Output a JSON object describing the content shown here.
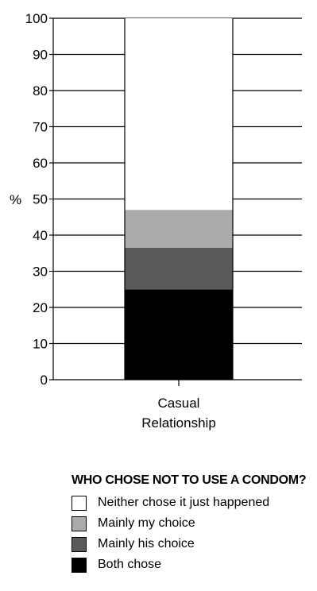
{
  "chart_data": {
    "type": "bar",
    "stacked": true,
    "categories": [
      "Casual\nRelationship"
    ],
    "ylabel": "%",
    "ylim": [
      0,
      100
    ],
    "yticks": [
      0,
      10,
      20,
      30,
      40,
      50,
      60,
      70,
      80,
      90,
      100
    ],
    "grid": true,
    "series": [
      {
        "name": "Both chose",
        "values": [
          25
        ],
        "color": "#000000"
      },
      {
        "name": "Mainly his choice",
        "values": [
          11.5
        ],
        "color": "#5a5a5a"
      },
      {
        "name": "Mainly my choice",
        "values": [
          10.5
        ],
        "color": "#aaaaaa"
      },
      {
        "name": "Neither chose it just happened",
        "values": [
          53
        ],
        "color": "#ffffff"
      }
    ],
    "legend_title": "WHO CHOSE NOT TO USE A CONDOM?",
    "legend_order": [
      "Neither chose it just happened",
      "Mainly my choice",
      "Mainly his choice",
      "Both chose"
    ],
    "legend_position": "bottom"
  }
}
